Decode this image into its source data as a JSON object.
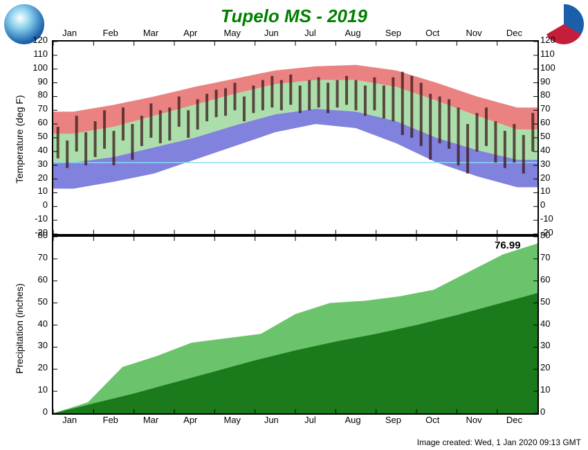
{
  "title": "Tupelo MS - 2019",
  "title_color": "#008000",
  "footer": "Image created: Wed, 1 Jan 2020 09:13 GMT",
  "months": [
    "Jan",
    "Feb",
    "Mar",
    "Apr",
    "May",
    "Jun",
    "Jul",
    "Aug",
    "Sep",
    "Oct",
    "Nov",
    "Dec"
  ],
  "temp_chart": {
    "type": "area-band-with-bars",
    "ylabel": "Temperature (deg F)",
    "ylim": [
      -20,
      120
    ],
    "ytick_step": 10,
    "background_color": "#ffffff",
    "grid_color": "#e0e0e0",
    "normal_high_avg": [
      53,
      58,
      66,
      74,
      82,
      89,
      92,
      92,
      87,
      77,
      66,
      56
    ],
    "normal_low_avg": [
      32,
      36,
      43,
      50,
      59,
      67,
      71,
      69,
      62,
      50,
      41,
      34
    ],
    "record_high_avg": [
      69,
      74,
      80,
      87,
      93,
      99,
      102,
      103,
      99,
      90,
      80,
      72
    ],
    "record_low_avg": [
      13,
      18,
      24,
      34,
      44,
      54,
      60,
      57,
      46,
      32,
      22,
      14
    ],
    "actual_high_samples": [
      58,
      48,
      66,
      54,
      62,
      70,
      55,
      72,
      60,
      66,
      75,
      70,
      72,
      80,
      70,
      78,
      82,
      85,
      86,
      90,
      80,
      88,
      92,
      95,
      92,
      96,
      88,
      92,
      94,
      90,
      92,
      95,
      92,
      88,
      94,
      88,
      94,
      98,
      95,
      90,
      82,
      80,
      78,
      72,
      60,
      68,
      72,
      62,
      55,
      60,
      52,
      68
    ],
    "actual_low_samples": [
      35,
      28,
      40,
      30,
      36,
      42,
      30,
      48,
      34,
      44,
      50,
      46,
      48,
      58,
      50,
      56,
      62,
      65,
      66,
      70,
      62,
      68,
      70,
      72,
      70,
      74,
      68,
      70,
      72,
      68,
      72,
      74,
      70,
      66,
      70,
      64,
      62,
      52,
      50,
      44,
      34,
      46,
      42,
      30,
      24,
      40,
      44,
      32,
      28,
      32,
      24,
      40
    ],
    "colors": {
      "record_high_band": "#e86c6c",
      "normal_band": "#9ed89e",
      "record_low_band": "#6b6bd8",
      "actual_bar": "#3a1818",
      "freeze_line": "#88ddee"
    },
    "freeze_line_value": 32
  },
  "precip_chart": {
    "type": "area",
    "ylabel": "Precipitation (inches)",
    "ylim": [
      0,
      80
    ],
    "ytick_step": 10,
    "background_color": "#ffffff",
    "normal_cum": [
      0,
      4.5,
      9,
      14,
      19,
      24,
      28.5,
      32.5,
      36,
      40,
      44.5,
      49.5,
      54.5
    ],
    "actual_cum": [
      0,
      5,
      21,
      26,
      32,
      34,
      36,
      45,
      50,
      51,
      53,
      56,
      64,
      72,
      76.99
    ],
    "annotation": "76.99",
    "colors": {
      "normal_area": "#1b7a1b",
      "actual_area": "#6bc46b"
    }
  }
}
